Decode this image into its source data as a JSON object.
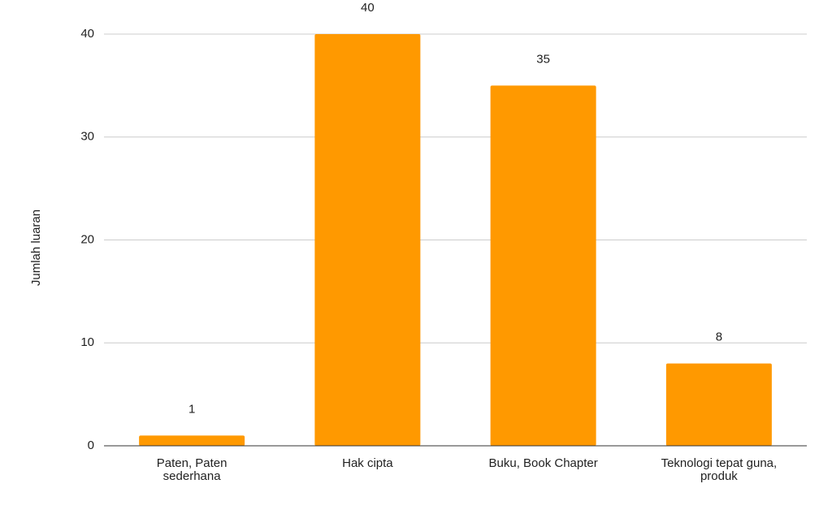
{
  "chart_data": {
    "type": "bar",
    "y_axis_label": "Jumlah luaran",
    "categories": [
      "Paten, Paten sederhana",
      "Hak cipta",
      "Buku, Book Chapter",
      "Teknologi tepat guna, produk"
    ],
    "values": [
      1,
      40,
      35,
      8
    ],
    "color": "#ff9900",
    "ylim": [
      0,
      40
    ],
    "yticks": [
      0,
      10,
      20,
      30,
      40
    ],
    "grid": true
  }
}
